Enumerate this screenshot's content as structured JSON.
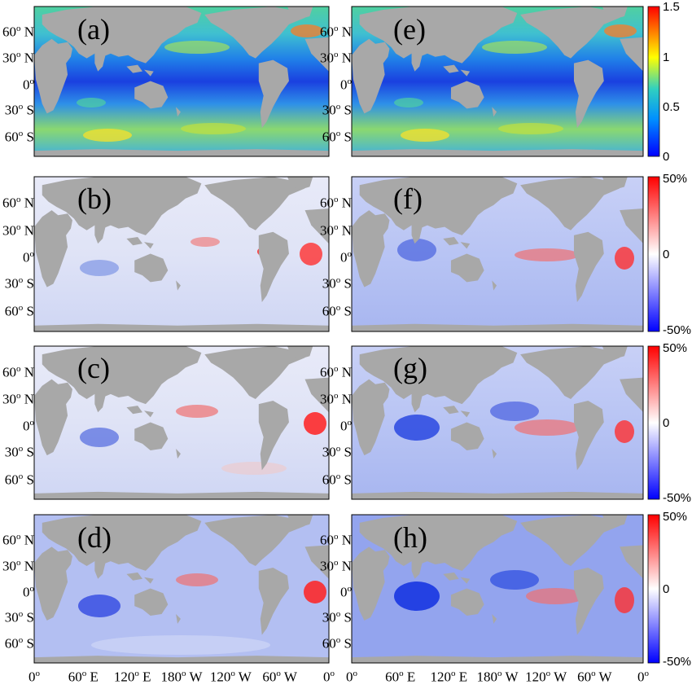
{
  "panels": [
    {
      "letter": "(a)",
      "kind": "magnitude"
    },
    {
      "letter": "(b)",
      "kind": "percent"
    },
    {
      "letter": "(c)",
      "kind": "percent"
    },
    {
      "letter": "(d)",
      "kind": "percent"
    },
    {
      "letter": "(e)",
      "kind": "magnitude"
    },
    {
      "letter": "(f)",
      "kind": "percent"
    },
    {
      "letter": "(g)",
      "kind": "percent"
    },
    {
      "letter": "(h)",
      "kind": "percent"
    }
  ],
  "lat_labels": [
    "60° N",
    "30° N",
    "0°",
    "30° S",
    "60° S"
  ],
  "lon_labels": [
    "0°",
    "60° E",
    "120° E",
    "180° W",
    "120° W",
    "60° W",
    "0°"
  ],
  "colorbar_magnitude": {
    "ticks": [
      "1.5",
      "1",
      "0.5",
      "0"
    ],
    "range": [
      0,
      1.5
    ],
    "colors": [
      "#0000ff",
      "#00a0ff",
      "#30d0d0",
      "#ffff00",
      "#ff0000"
    ]
  },
  "colorbar_percent": {
    "ticks": [
      "50%",
      "0",
      "-50%"
    ],
    "range": [
      -50,
      50
    ],
    "colors": [
      "#0000ff",
      "#ffffff",
      "#ff0000"
    ]
  },
  "colors": {
    "land": "#a8a8a8",
    "ocean_low": "#1e46e6",
    "ocean_mid": "#3cc0e0",
    "ocean_high": "#f0e040"
  }
}
